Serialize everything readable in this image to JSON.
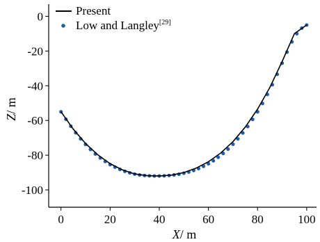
{
  "chart_data": {
    "type": "line",
    "title": "",
    "xlabel": {
      "symbol": "X",
      "unit": "/ m"
    },
    "ylabel": {
      "symbol": "Z",
      "unit": "/ m"
    },
    "xlim": [
      -5,
      104
    ],
    "ylim": [
      -110,
      7
    ],
    "xticks": [
      0,
      20,
      40,
      60,
      80,
      100
    ],
    "yticks": [
      0,
      -20,
      -40,
      -60,
      -80,
      -100
    ],
    "grid": false,
    "legend_position": "top-left",
    "series": [
      {
        "name": "Present",
        "style": "line",
        "color": "#000000",
        "x": [
          0,
          5,
          10,
          15,
          20,
          25,
          30,
          35,
          40,
          45,
          50,
          55,
          60,
          65,
          70,
          75,
          80,
          85,
          90,
          95,
          100
        ],
        "y": [
          -55,
          -65,
          -73.3,
          -79.8,
          -84.9,
          -88.5,
          -90.8,
          -91.8,
          -92,
          -91.5,
          -90,
          -87.5,
          -83.8,
          -78.8,
          -72.2,
          -63.8,
          -53.5,
          -41,
          -26,
          -10,
          -5
        ]
      },
      {
        "name": "Low and Langley",
        "name_sup": "[29]",
        "style": "marker",
        "color": "#1f5fa8",
        "x": [
          0,
          2,
          4,
          6,
          8,
          10,
          12,
          14,
          16,
          18,
          20,
          22,
          24,
          26,
          28,
          30,
          32,
          34,
          36,
          38,
          40,
          42,
          44,
          46,
          48,
          50,
          52,
          54,
          56,
          58,
          60,
          62,
          64,
          66,
          68,
          70,
          72,
          74,
          76,
          78,
          80,
          82,
          84,
          86,
          88,
          90,
          92,
          94,
          96,
          98,
          100
        ],
        "y": [
          -55,
          -59.3,
          -63.3,
          -67.1,
          -70.6,
          -73.8,
          -76.7,
          -79.3,
          -81.6,
          -83.6,
          -85.4,
          -86.9,
          -88.2,
          -89.3,
          -90.2,
          -90.9,
          -91.4,
          -91.7,
          -91.9,
          -92,
          -92,
          -91.9,
          -91.7,
          -91.4,
          -91,
          -90.4,
          -89.7,
          -88.8,
          -87.7,
          -86.4,
          -84.9,
          -83.2,
          -81.2,
          -79,
          -76.5,
          -73.7,
          -70.6,
          -67.2,
          -63.5,
          -59.4,
          -55,
          -50.2,
          -45,
          -39.4,
          -33.4,
          -27,
          -20.6,
          -14.7,
          -10,
          -6.8,
          -5
        ]
      }
    ]
  }
}
